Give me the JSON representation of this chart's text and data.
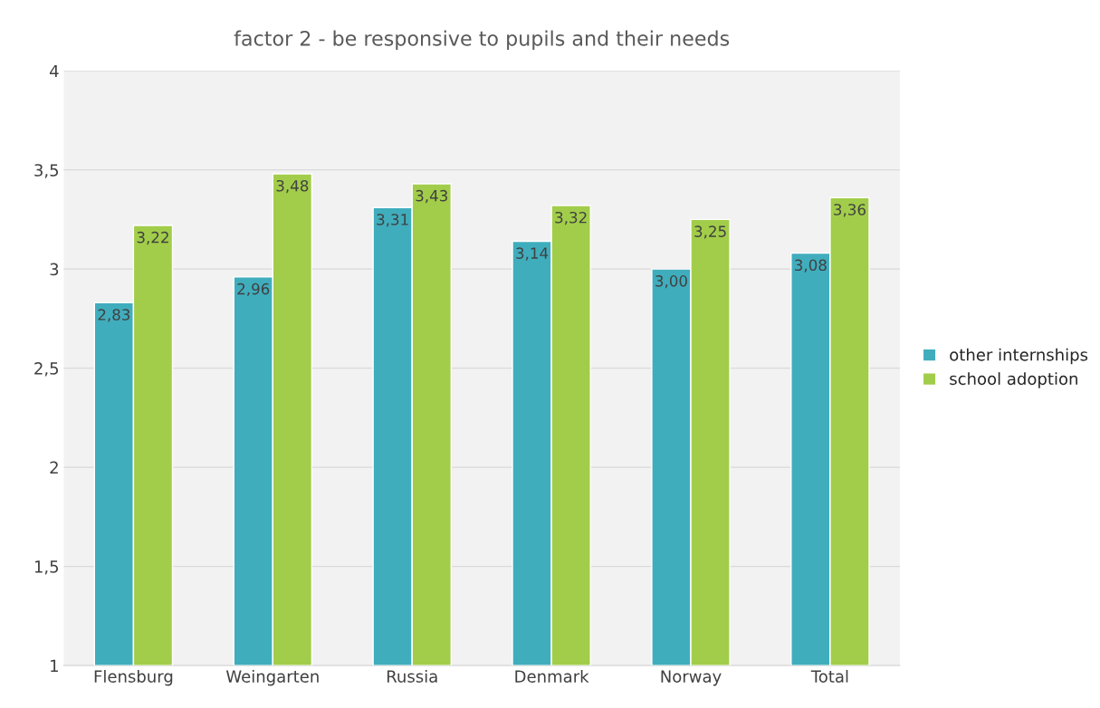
{
  "chart_data": {
    "type": "bar",
    "title": "factor 2 - be responsive to pupils and their needs",
    "categories": [
      "Flensburg",
      "Weingarten",
      "Russia",
      "Denmark",
      "Norway",
      "Total"
    ],
    "series": [
      {
        "name": "other internships",
        "color": "#40adbd",
        "values": [
          2.83,
          2.96,
          3.31,
          3.14,
          3.0,
          3.08
        ],
        "value_labels": [
          "2,83",
          "2,96",
          "3,31",
          "3,14",
          "3,00",
          "3,08"
        ]
      },
      {
        "name": "school adoption",
        "color": "#a2cd4a",
        "values": [
          3.22,
          3.48,
          3.43,
          3.32,
          3.25,
          3.36
        ],
        "value_labels": [
          "3,22",
          "3,48",
          "3,43",
          "3,32",
          "3,25",
          "3,36"
        ]
      }
    ],
    "ylim": [
      1,
      4
    ],
    "yticks": [
      1,
      {
        "value": 1.5,
        "label": "1,5"
      },
      2,
      {
        "value": 2.5,
        "label": "2,5"
      },
      3,
      {
        "value": 3.5,
        "label": "3,5"
      },
      4
    ],
    "grid": "y",
    "legend": "right"
  }
}
